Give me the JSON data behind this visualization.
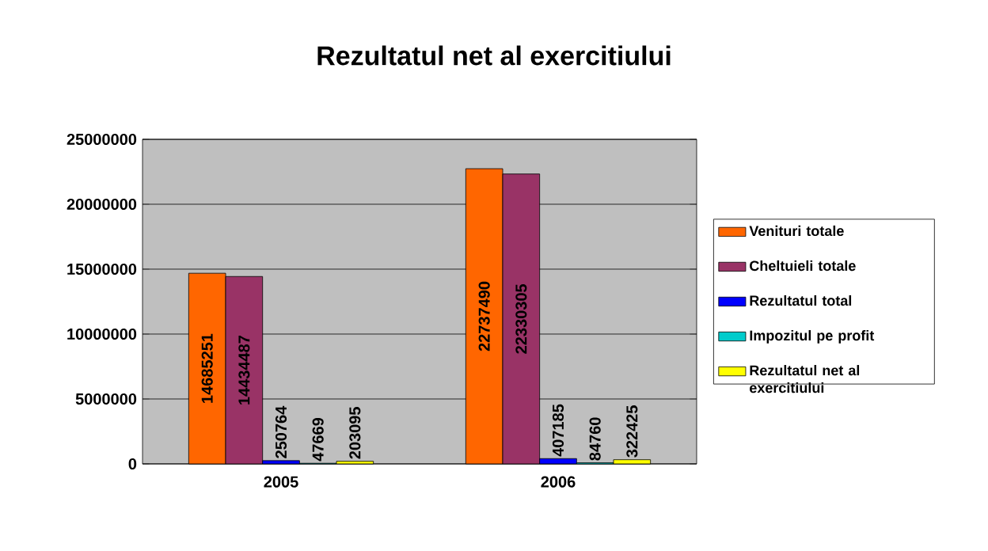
{
  "chart_data": {
    "type": "bar",
    "title": "Rezultatul net al exercitiului",
    "categories": [
      "2005",
      "2006"
    ],
    "series": [
      {
        "name": "Venituri totale",
        "color": "#ff6600",
        "values": [
          14685251,
          22737490
        ]
      },
      {
        "name": "Cheltuieli totale",
        "color": "#993366",
        "values": [
          14434487,
          22330305
        ]
      },
      {
        "name": "Rezultatul total",
        "color": "#0000ff",
        "values": [
          250764,
          407185
        ]
      },
      {
        "name": "Impozitul pe profit",
        "color": "#00cccc",
        "values": [
          47669,
          84760
        ]
      },
      {
        "name": "Rezultatul net al exercitiului",
        "color": "#ffff00",
        "values": [
          203095,
          322425
        ]
      }
    ],
    "ylim": [
      0,
      25000000
    ],
    "yticks": [
      0,
      5000000,
      10000000,
      15000000,
      20000000,
      25000000
    ],
    "grid": "y",
    "legend": "right",
    "data_labels": true
  }
}
